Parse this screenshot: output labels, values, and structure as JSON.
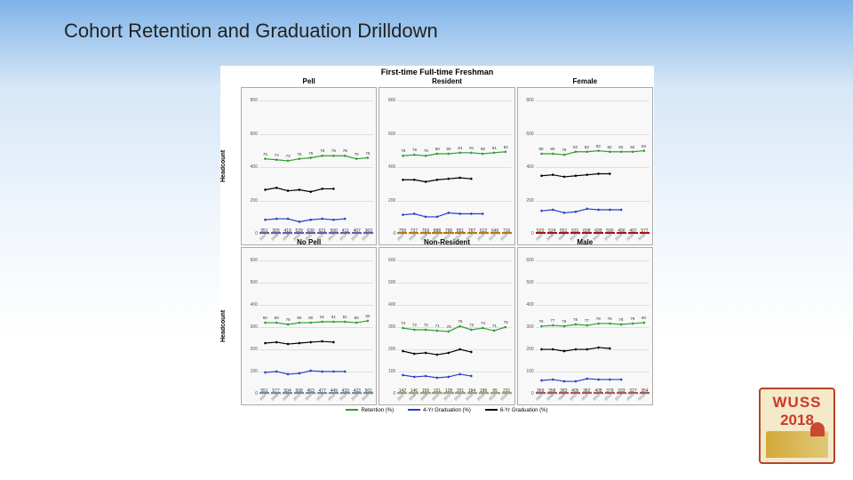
{
  "title_parts": [
    "Cohort Retention and",
    " Graduation Drilldown"
  ],
  "supertitle": "First-time Full-time Freshman",
  "ylabel": "Headcount",
  "legend": [
    {
      "label": "Retention (%)",
      "color": "#2e9e2e"
    },
    {
      "label": "4-Yr Graduation (%)",
      "color": "#2040c8"
    },
    {
      "label": "6-Yr Graduation (%)",
      "color": "#000000"
    }
  ],
  "years": [
    "07",
    "08",
    "09",
    "10",
    "11",
    "12",
    "13",
    "14",
    "15",
    "16"
  ],
  "panels": [
    {
      "title": "Pell",
      "bar_color": "#8c8cf0",
      "ymax": 800,
      "values": [
        351,
        305,
        419,
        529,
        630,
        621,
        500,
        411,
        407,
        363
      ],
      "retention": [
        75,
        74,
        73,
        75,
        76,
        78,
        78,
        78,
        75,
        76
      ],
      "grad4": [
        14,
        15,
        15,
        12,
        14,
        15,
        14,
        15,
        null,
        null
      ],
      "grad6": [
        44,
        46,
        43,
        44,
        42,
        45,
        45,
        null,
        null,
        null
      ]
    },
    {
      "title": "Resident",
      "bar_color": "#ffb020",
      "ymax": 800,
      "values": [
        759,
        737,
        769,
        888,
        796,
        851,
        787,
        622,
        646,
        716
      ],
      "retention": [
        78,
        79,
        78,
        80,
        80,
        81,
        81,
        80,
        81,
        82
      ],
      "grad4": [
        19,
        20,
        17,
        17,
        21,
        20,
        20,
        20,
        null,
        null
      ],
      "grad6": [
        54,
        54,
        52,
        54,
        55,
        56,
        55,
        null,
        null,
        null
      ]
    },
    {
      "title": "Female",
      "bar_color": "#e82020",
      "ymax": 800,
      "values": [
        520,
        524,
        551,
        631,
        608,
        699,
        590,
        490,
        497,
        577
      ],
      "retention": [
        80,
        80,
        79,
        82,
        82,
        83,
        82,
        82,
        82,
        83
      ],
      "grad4": [
        23,
        24,
        21,
        22,
        25,
        24,
        24,
        24,
        null,
        null
      ],
      "grad6": [
        58,
        59,
        57,
        58,
        59,
        60,
        60,
        null,
        null,
        null
      ]
    },
    {
      "title": "No Pell",
      "bar_color": "#9ad0e8",
      "ymax": 600,
      "values": [
        551,
        577,
        504,
        508,
        463,
        477,
        449,
        433,
        423,
        501
      ],
      "retention": [
        80,
        80,
        78,
        80,
        80,
        81,
        81,
        81,
        80,
        82
      ],
      "grad4": [
        24,
        25,
        22,
        23,
        26,
        25,
        25,
        25,
        null,
        null
      ],
      "grad6": [
        57,
        58,
        56,
        57,
        58,
        59,
        58,
        null,
        null,
        null
      ]
    },
    {
      "title": "Non-Resident",
      "bar_color": "#e8e8a0",
      "ymax": 600,
      "values": [
        142,
        146,
        156,
        151,
        128,
        201,
        184,
        186,
        95,
        231
      ],
      "retention": [
        74,
        72,
        72,
        71,
        70,
        76,
        72,
        74,
        71,
        75
      ],
      "grad4": [
        21,
        19,
        20,
        18,
        19,
        22,
        20,
        null,
        null,
        null
      ],
      "grad6": [
        48,
        45,
        46,
        44,
        46,
        50,
        47,
        null,
        null,
        null
      ]
    },
    {
      "title": "Male",
      "bar_color": "#f08080",
      "ymax": 600,
      "values": [
        369,
        358,
        383,
        405,
        382,
        408,
        379,
        333,
        327,
        354
      ],
      "retention": [
        76,
        77,
        76,
        78,
        77,
        79,
        79,
        78,
        79,
        80
      ],
      "grad4": [
        15,
        16,
        14,
        14,
        17,
        16,
        16,
        16,
        null,
        null
      ],
      "grad6": [
        50,
        50,
        48,
        50,
        50,
        52,
        51,
        null,
        null,
        null
      ]
    }
  ],
  "logo": {
    "line1": "WUSS",
    "line2": "2018"
  }
}
